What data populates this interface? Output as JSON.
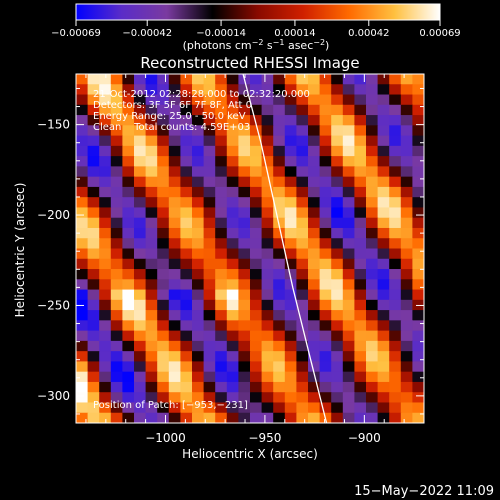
{
  "chart_data": {
    "type": "heatmap",
    "title": "Reconstructed RHESSI Image",
    "xlabel": "Heliocentric X (arcsec)",
    "ylabel": "Heliocentric Y (arcsec)",
    "xlim": [
      -1045,
      -870
    ],
    "ylim": [
      -315,
      -122
    ],
    "x_ticks": [
      {
        "value": -1000,
        "label": "−1000"
      },
      {
        "value": -950,
        "label": "−950"
      },
      {
        "value": -900,
        "label": "−900"
      }
    ],
    "y_ticks": [
      {
        "value": -150,
        "label": "−150"
      },
      {
        "value": -200,
        "label": "−200"
      },
      {
        "value": -250,
        "label": "−250"
      },
      {
        "value": -300,
        "label": "−300"
      }
    ],
    "colorbar": {
      "label_main": "(photons cm",
      "label_sup1": "−2",
      "label_mid": " s",
      "label_sup2": "−1",
      "label_mid2": " asec",
      "label_sup3": "−2",
      "label_end": ")",
      "range": [
        -0.00069,
        0.00069
      ],
      "ticks": [
        {
          "value": -0.00069,
          "label": "−0.00069"
        },
        {
          "value": -0.00042,
          "label": "−0.00042"
        },
        {
          "value": -0.00014,
          "label": "−0.00014"
        },
        {
          "value": 0.00014,
          "label": "0.00014"
        },
        {
          "value": 0.00042,
          "label": "0.00042"
        },
        {
          "value": 0.00069,
          "label": "0.00069"
        }
      ],
      "colors": [
        "#0000ff",
        "#5a2cc8",
        "#7a3aa0",
        "#000000",
        "#8a0a00",
        "#d02000",
        "#ff6a00",
        "#ffc040",
        "#ffffff"
      ]
    },
    "limb_curve": [
      [
        -961,
        -122
      ],
      [
        -952,
        -160
      ],
      [
        -944,
        -200
      ],
      [
        -936,
        -240
      ],
      [
        -927,
        -280
      ],
      [
        -919,
        -315
      ]
    ],
    "image_grid": {
      "nx": 30,
      "ny": 34
    },
    "stripe_direction": "diagonal, upper-left to lower-right"
  },
  "annotations": {
    "line1": "21-Oct-2012 02:28:28.000 to 02:32:20.000",
    "line2": "Detectors: 3F 5F 6F 7F 8F, Att 0",
    "line3": "Energy Range: 25.0 - 50.0 keV",
    "line4": "Clean    Total counts: 4.59E+03",
    "patch": "Position of Patch: [−953,−231]"
  },
  "footer": {
    "timestamp": "15−May−2022 11:09"
  }
}
